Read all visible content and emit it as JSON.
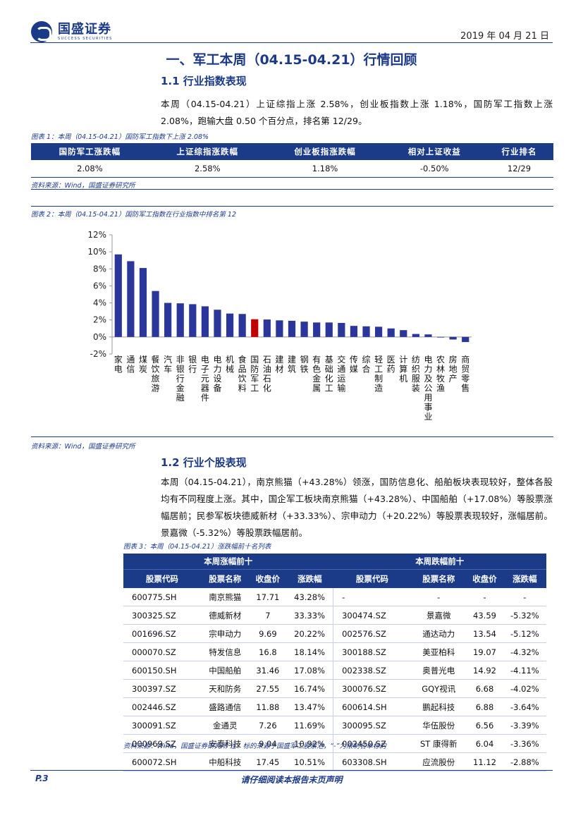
{
  "header": {
    "brand_cn": "国盛证券",
    "brand_en": "SUCCESS  SECURITIES",
    "date": "2019 年 04 月 21 日"
  },
  "section_title": "一、军工本周（04.15-04.21）行情回顾",
  "s11": {
    "title": "1.1  行业指数表现",
    "para": "本周（04.15-04.21）上证综指上涨 2.58%，创业板指数上涨 1.18%，国防军工指数上涨 2.08%，跑输大盘 0.50 个百分点，排名第 12/29。",
    "table_caption": "图表 1：本周（04.15-04.21）国防军工指数下上涨 2.08%",
    "table_headers": [
      "国防军工涨跌幅",
      "上证综指涨跌幅",
      "创业板指涨跌幅",
      "相对上证收益",
      "行业排名"
    ],
    "table_row": [
      "2.08%",
      "2.58%",
      "1.18%",
      "-0.50%",
      "12/29"
    ],
    "table_source": "资料来源：Wind，国盛证券研究所",
    "chart_caption": "图表 2：本周（04.15-04.21）国防军工指数在行业指数中排名第 12",
    "chart_source": "资料来源：Wind，国盛证券研究所"
  },
  "chart_data": {
    "type": "bar",
    "categories": [
      "家电",
      "通信",
      "煤炭",
      "餐饮旅游",
      "汽车",
      "非银行金融",
      "银行",
      "电子元器件",
      "电力设备",
      "机械",
      "食品饮料",
      "国防军工",
      "石油石化",
      "建材",
      "建筑",
      "钢铁",
      "有色金属",
      "基础化工",
      "交通运输",
      "传媒",
      "综合",
      "轻工制造",
      "医药",
      "计算机",
      "纺织服装",
      "电力及公用事业",
      "农林牧渔",
      "房地产",
      "商贸零售"
    ],
    "values": [
      9.7,
      8.9,
      8.1,
      5.4,
      4.0,
      3.95,
      3.85,
      3.6,
      3.2,
      2.75,
      2.7,
      2.08,
      2.05,
      1.95,
      1.9,
      1.8,
      1.7,
      1.7,
      1.65,
      1.3,
      1.25,
      1.2,
      1.0,
      0.8,
      0.35,
      0.3,
      0.0,
      -0.3,
      -0.6
    ],
    "highlight_index": 11,
    "yticks": [
      "12%",
      "10%",
      "8%",
      "6%",
      "4%",
      "2%",
      "0%",
      "-2%"
    ],
    "ylim": [
      -2,
      12
    ],
    "colors": {
      "bar": "#2a3699",
      "highlight": "#c00000"
    },
    "grid": false,
    "legend": "none"
  },
  "s12": {
    "title": "1.2  行业个股表现",
    "para": "本周（04.15-04.21），南京熊猫（+43.28%）领涨，国防信息化、船舶板块表现较好，整体各股均有不同程度上涨。其中，国企军工板块南京熊猫（+43.28%）、中国船舶（+17.08%）等股票涨幅居前；民参军板块德威新材（+33.33%）、宗申动力（+20.22%）等股票表现较好，涨幅居前。景嘉微（-5.32%）等股票跌幅居前。",
    "table_caption": "图表 3：本周（04.15-04.21）涨跌幅前十名列表",
    "group_up": "本周涨幅前十",
    "group_down": "本周跌幅前十",
    "col_headers": [
      "股票代码",
      "股票名称",
      "收盘价",
      "涨跌幅",
      "股票代码",
      "股票名称",
      "收盘价",
      "涨跌幅"
    ],
    "rows": [
      [
        "600775.SH",
        "南京熊猫",
        "17.71",
        "43.28%",
        "-",
        "-",
        "-",
        "-"
      ],
      [
        "300325.SZ",
        "德威新材",
        "7",
        "33.33%",
        "300474.SZ",
        "景嘉微",
        "43.59",
        "-5.32%"
      ],
      [
        "001696.SZ",
        "宗申动力",
        "9.69",
        "20.22%",
        "002576.SZ",
        "通达动力",
        "13.54",
        "-5.12%"
      ],
      [
        "000070.SZ",
        "特发信息",
        "16.8",
        "18.14%",
        "300188.SZ",
        "美亚柏科",
        "19.07",
        "-4.32%"
      ],
      [
        "600150.SH",
        "中国船舶",
        "31.46",
        "17.08%",
        "002338.SZ",
        "奥普光电",
        "14.92",
        "-4.11%"
      ],
      [
        "300397.SZ",
        "天和防务",
        "27.55",
        "16.74%",
        "300076.SZ",
        "GQY视讯",
        "6.68",
        "-4.02%"
      ],
      [
        "002446.SZ",
        "盛路通信",
        "11.88",
        "13.47%",
        "600614.SH",
        "鹏起科技",
        "6.88",
        "-3.64%"
      ],
      [
        "300091.SZ",
        "金通灵",
        "7.26",
        "11.69%",
        "300095.SZ",
        "华伍股份",
        "6.56",
        "-3.39%"
      ],
      [
        "000969.SZ",
        "安泰科技",
        "9.04",
        "10.92%",
        "002450.SZ",
        "ST 康得新",
        "6.04",
        "-3.36%"
      ],
      [
        "600072.SH",
        "中船科技",
        "17.45",
        "10.51%",
        "603308.SH",
        "应流股份",
        "11.12",
        "-2.88%"
      ]
    ],
    "table_source": "资料来源：Wind，国盛证券研究所 注：标的来源于国盛军工股票池，“-”为限制名单标的"
  },
  "footer": {
    "page": "P.3",
    "notice": "请仔细阅读本报告末页声明"
  }
}
